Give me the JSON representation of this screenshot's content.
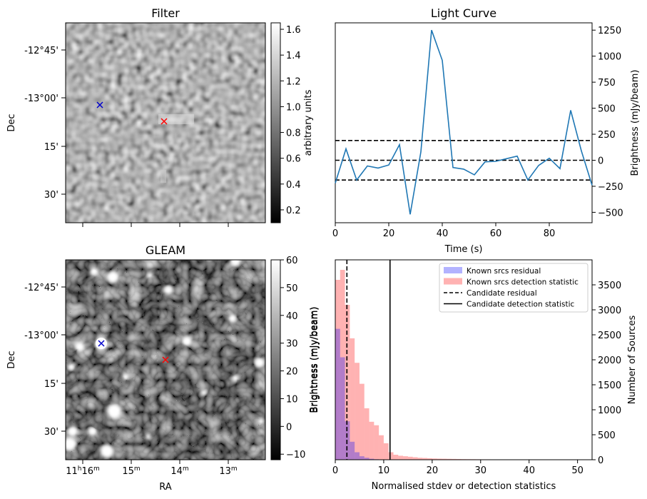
{
  "filter_panel": {
    "title": "Filter",
    "ylabel": "Dec",
    "dec_ticks": [
      "-12°45'",
      "-13°00'",
      "15'",
      "30'"
    ],
    "colorbar": {
      "label": "arbitrary units",
      "range": [
        0.1,
        1.65
      ],
      "ticks": [
        0.2,
        0.4,
        0.6,
        0.8,
        1.0,
        1.2,
        1.4,
        1.6
      ]
    },
    "markers": [
      {
        "name": "candidate",
        "color": "#ff0000"
      },
      {
        "name": "known-source",
        "color": "#0000cc"
      }
    ]
  },
  "gleam_panel": {
    "title": "GLEAM",
    "xlabel": "RA",
    "ylabel": "Dec",
    "dec_ticks": [
      "-12°45'",
      "-13°00'",
      "15'",
      "30'"
    ],
    "ra_ticks": [
      {
        "main": "11",
        "sup1": "h",
        "mid": "16",
        "sup2": "m"
      },
      {
        "main": "15",
        "sup2": "m"
      },
      {
        "main": "14",
        "sup2": "m"
      },
      {
        "main": "13",
        "sup2": "m"
      }
    ],
    "colorbar": {
      "label": "Brightness (mJy/beam)",
      "range": [
        -12,
        60
      ],
      "ticks": [
        -10,
        0,
        10,
        20,
        30,
        40,
        50,
        60
      ]
    }
  },
  "chart_data": [
    {
      "type": "line",
      "title": "Light Curve",
      "xlabel": "Time (s)",
      "ylabel": "Brightness (mJy/beam)",
      "xlim": [
        0,
        96
      ],
      "ylim": [
        -600,
        1320
      ],
      "xticks": [
        0,
        20,
        40,
        60,
        80
      ],
      "yticks": [
        -500,
        -250,
        0,
        250,
        500,
        750,
        1000,
        1250
      ],
      "x": [
        0,
        4,
        8,
        12,
        16,
        20,
        24,
        28,
        32,
        36,
        40,
        44,
        48,
        52,
        56,
        60,
        64,
        68,
        72,
        76,
        80,
        84,
        88,
        92,
        96
      ],
      "y": [
        -220,
        110,
        -190,
        -55,
        -75,
        -45,
        150,
        -520,
        80,
        1250,
        960,
        -70,
        -85,
        -140,
        -15,
        -10,
        15,
        40,
        -190,
        -50,
        20,
        -80,
        480,
        90,
        -240
      ],
      "hlines": [
        190,
        0,
        -190
      ],
      "series_color": "#1f77b4"
    },
    {
      "type": "bar",
      "xlabel": "Normalised stdev or detection statistics",
      "ylabel": "Brightness (mJy/beam)",
      "ylabel_right": "Number of Sources",
      "xlim": [
        0,
        53
      ],
      "ylim": [
        0,
        4000
      ],
      "xticks": [
        0,
        10,
        20,
        30,
        40,
        50
      ],
      "yticks": [
        0,
        500,
        1000,
        1500,
        2000,
        2500,
        3000,
        3500
      ],
      "bin_width": 1,
      "series": [
        {
          "name": "Known srcs residual",
          "color": "#0000ff",
          "alpha": 0.3,
          "bin_starts": [
            0,
            1,
            2,
            3,
            4,
            5,
            6,
            7,
            8,
            9,
            10,
            11
          ],
          "counts": [
            2620,
            2050,
            770,
            360,
            150,
            70,
            40,
            20,
            10,
            5,
            3,
            2
          ]
        },
        {
          "name": "Known srcs detection statistic",
          "color": "#ff0000",
          "alpha": 0.3,
          "bin_starts": [
            0,
            1,
            2,
            3,
            4,
            5,
            6,
            7,
            8,
            9,
            10,
            11,
            12,
            13,
            14,
            15,
            16,
            17,
            18,
            19,
            20,
            21,
            22,
            23,
            24,
            25,
            26,
            27,
            28,
            29,
            30,
            31,
            32,
            33,
            34,
            35,
            36,
            37,
            38,
            39,
            40,
            41,
            42,
            43,
            44,
            45,
            46,
            47,
            48,
            49,
            50
          ],
          "counts": [
            3600,
            3800,
            3100,
            2430,
            1940,
            1520,
            1030,
            760,
            690,
            490,
            330,
            150,
            100,
            80,
            70,
            60,
            50,
            40,
            35,
            30,
            25,
            22,
            20,
            18,
            16,
            14,
            12,
            11,
            10,
            9,
            8,
            8,
            7,
            7,
            6,
            6,
            5,
            5,
            5,
            4,
            4,
            4,
            3,
            3,
            3,
            3,
            3,
            2,
            2,
            2,
            1
          ]
        }
      ],
      "vlines": [
        {
          "name": "Candidate residual",
          "x": 2.4,
          "style": "dashed"
        },
        {
          "name": "Candidate detection statistic",
          "x": 11.3,
          "style": "solid"
        }
      ],
      "legend_position": "upper right"
    }
  ]
}
